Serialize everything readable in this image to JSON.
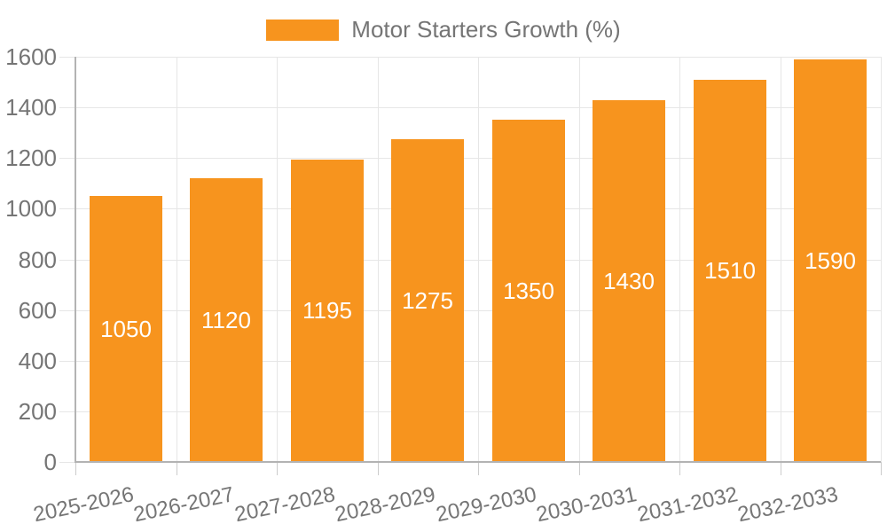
{
  "page": {
    "background": "#FFFFFF"
  },
  "legend": {
    "position": "top-center",
    "label": "Motor Starters Growth (%)",
    "swatch_color": "#F7941E"
  },
  "chart_data": {
    "type": "bar",
    "title": "",
    "xlabel": "",
    "ylabel": "",
    "categories": [
      "2025-2026",
      "2026-2027",
      "2027-2028",
      "2028-2029",
      "2029-2030",
      "2030-2031",
      "2031-2032",
      "2032-2033"
    ],
    "series": [
      {
        "name": "Motor Starters Growth (%)",
        "color": "#F7941E",
        "values": [
          1050,
          1120,
          1195,
          1275,
          1350,
          1430,
          1510,
          1590
        ]
      }
    ],
    "value_labels": {
      "show": true,
      "position": "inside-middle",
      "color": "#FFFFFF"
    },
    "ylim": [
      0,
      1600
    ],
    "yticks": [
      0,
      200,
      400,
      600,
      800,
      1000,
      1200,
      1400,
      1600
    ],
    "x_label_rotation_deg": -12,
    "legend_position": "top-center",
    "grid": {
      "horizontal": true,
      "vertical_category_boundaries": true
    },
    "colors": {
      "axis_text": "#757575",
      "gridline": "#E6E6E6",
      "axis_line": "#B3B3B3",
      "below_axis_tick": "#CCCCCC"
    }
  }
}
